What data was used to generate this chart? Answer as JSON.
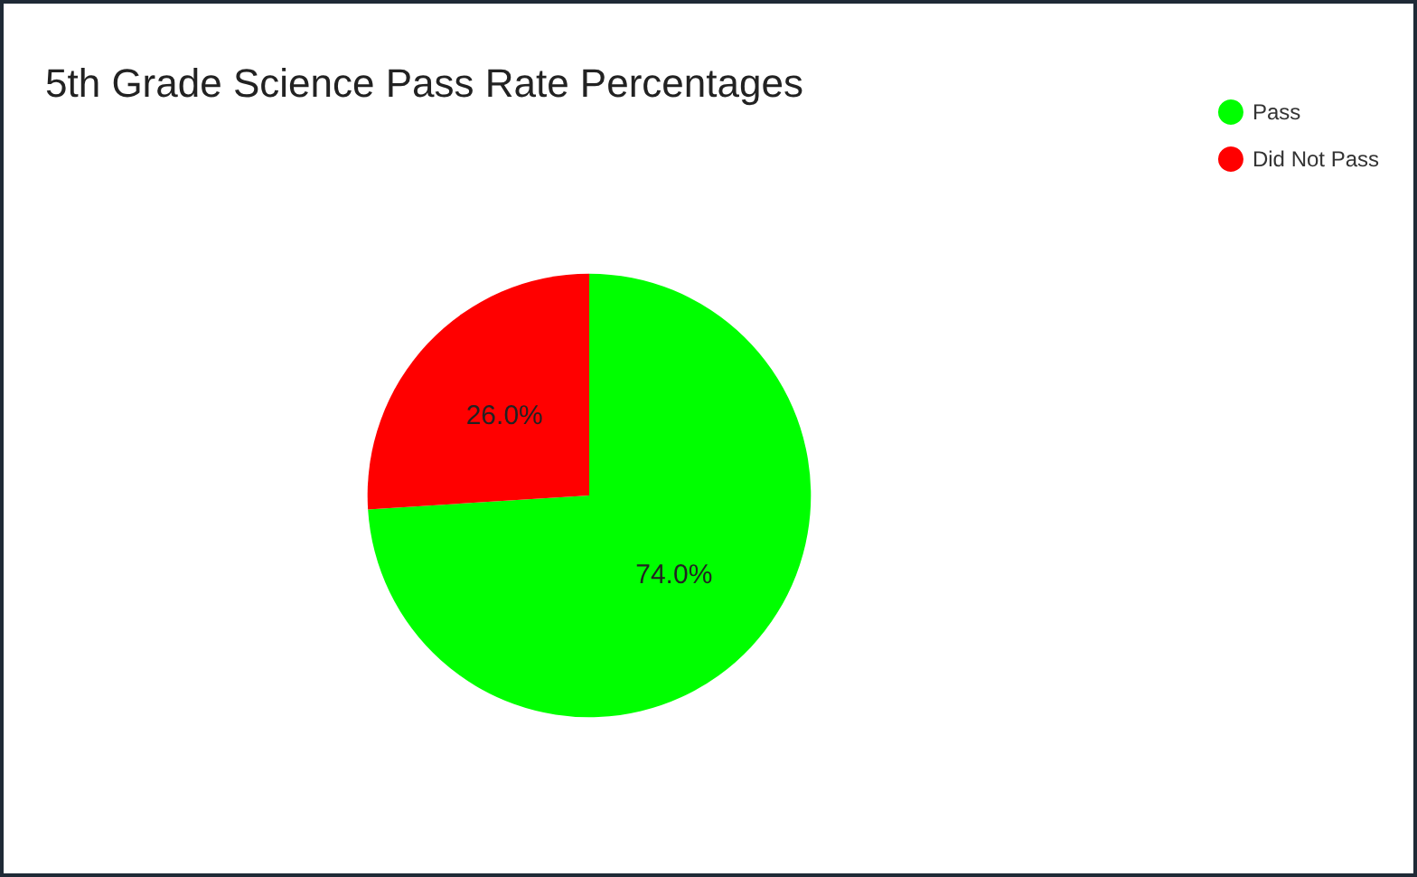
{
  "chart_data": {
    "type": "pie",
    "title": "5th Grade Science Pass Rate Percentages",
    "categories": [
      "Pass",
      "Did Not Pass"
    ],
    "values": [
      74,
      26
    ],
    "colors": [
      "#00ff00",
      "#ff0000"
    ],
    "value_labels": [
      "74.0%",
      "26.0%"
    ],
    "legend": "top right"
  }
}
